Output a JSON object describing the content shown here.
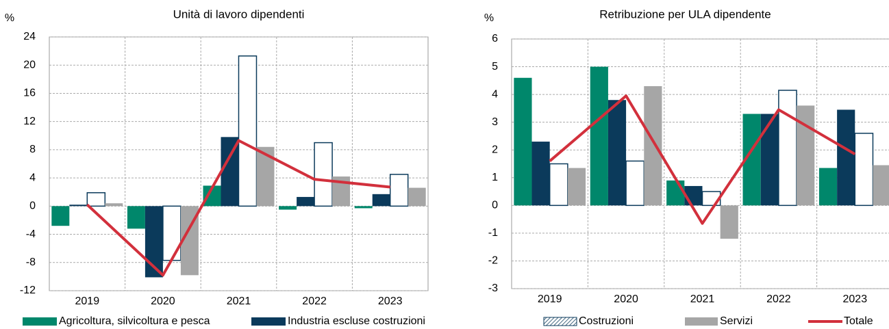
{
  "chart_data": [
    {
      "type": "bar",
      "title": "Unità di lavoro dipendenti",
      "y_label": "%",
      "categories": [
        "2019",
        "2020",
        "2021",
        "2022",
        "2023"
      ],
      "ylim": [
        -12,
        24
      ],
      "yticks": [
        -12,
        -8,
        -4,
        0,
        4,
        8,
        12,
        16,
        20,
        24
      ],
      "grid": true,
      "series": [
        {
          "name": "Agricoltura, silvicoltura e pesca",
          "color": "#00876b",
          "values": [
            -2.8,
            -3.2,
            2.9,
            -0.5,
            -0.3
          ]
        },
        {
          "name": "Industria escluse costruzioni",
          "color": "#0b3a5b",
          "values": [
            0.2,
            -10.1,
            9.8,
            1.3,
            1.7
          ]
        },
        {
          "name": "Costruzioni",
          "color": "#ffffff",
          "values": [
            1.9,
            -7.7,
            21.3,
            9.0,
            4.5
          ]
        },
        {
          "name": "Servizi",
          "color": "#a6a6a6",
          "values": [
            0.4,
            -9.8,
            8.4,
            4.2,
            2.6
          ]
        },
        {
          "name": "Totale",
          "type": "line",
          "color": "#d2303c",
          "values": [
            0.2,
            -9.8,
            9.3,
            3.8,
            2.7
          ]
        }
      ]
    },
    {
      "type": "bar",
      "title": "Retribuzione per ULA dipendente",
      "y_label": "%",
      "categories": [
        "2019",
        "2020",
        "2021",
        "2022",
        "2023"
      ],
      "ylim": [
        -3,
        6
      ],
      "yticks": [
        -3,
        -2,
        -1,
        0,
        1,
        2,
        3,
        4,
        5,
        6
      ],
      "grid": true,
      "series": [
        {
          "color": "#00876b",
          "values": [
            4.6,
            5.0,
            0.9,
            3.3,
            1.35
          ]
        },
        {
          "color": "#0b3a5b",
          "values": [
            2.3,
            3.8,
            0.7,
            3.3,
            3.45
          ]
        },
        {
          "color": "#ffffff",
          "values": [
            1.5,
            1.6,
            0.5,
            4.15,
            2.6
          ]
        },
        {
          "color": "#a6a6a6",
          "values": [
            1.35,
            4.3,
            -1.2,
            3.6,
            1.45
          ]
        },
        {
          "type": "line",
          "color": "#d2303c",
          "values": [
            1.6,
            3.95,
            -0.65,
            3.45,
            1.85
          ]
        }
      ]
    }
  ]
}
